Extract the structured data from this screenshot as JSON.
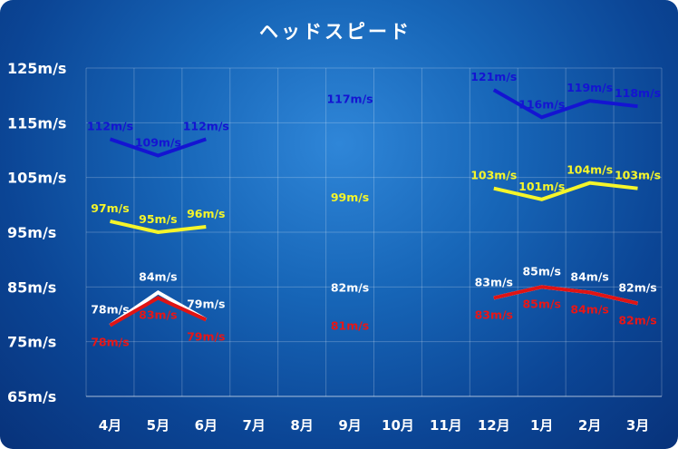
{
  "chart_data": {
    "type": "line",
    "title": "ヘッドスピード",
    "categories": [
      "4月",
      "5月",
      "6月",
      "7月",
      "8月",
      "9月",
      "10月",
      "11月",
      "12月",
      "1月",
      "2月",
      "3月"
    ],
    "ylim": [
      65,
      125
    ],
    "yticks": [
      65,
      75,
      85,
      95,
      105,
      115,
      125
    ],
    "ytick_labels": [
      "65m/s",
      "75m/s",
      "85m/s",
      "95m/s",
      "105m/s",
      "115m/s",
      "125m/s"
    ],
    "grid": true,
    "legend": "none",
    "series": [
      {
        "color": "#1414d2",
        "label_color": "#1414d2",
        "values": [
          112,
          109,
          112,
          null,
          null,
          117,
          null,
          null,
          121,
          116,
          119,
          118
        ],
        "labels": [
          "112m/s",
          "109m/s",
          "112m/s",
          "",
          "",
          "117m/s",
          "",
          "",
          "121m/s",
          "116m/s",
          "119m/s",
          "118m/s"
        ]
      },
      {
        "color": "#f5f52a",
        "label_color": "#f5f52a",
        "values": [
          97,
          95,
          96,
          null,
          null,
          99,
          null,
          null,
          103,
          101,
          104,
          103
        ],
        "labels": [
          "97m/s",
          "95m/s",
          "96m/s",
          "",
          "",
          "99m/s",
          "",
          "",
          "103m/s",
          "101m/s",
          "104m/s",
          "103m/s"
        ]
      },
      {
        "color": "#ffffff",
        "label_color": "#ffffff",
        "values": [
          78,
          84,
          79,
          null,
          null,
          82,
          null,
          null,
          83,
          85,
          84,
          82
        ],
        "labels": [
          "78m/s",
          "84m/s",
          "79m/s",
          "",
          "",
          "82m/s",
          "",
          "",
          "83m/s",
          "85m/s",
          "84m/s",
          "82m/s"
        ]
      },
      {
        "color": "#e01414",
        "label_color": "#e81616",
        "values": [
          78,
          83,
          79,
          null,
          null,
          81,
          null,
          null,
          83,
          85,
          84,
          82
        ],
        "labels": [
          "78m/s",
          "83m/s",
          "79m/s",
          "",
          "",
          "81m/s",
          "",
          "",
          "83m/s",
          "85m/s",
          "84m/s",
          "82m/s"
        ]
      }
    ]
  }
}
